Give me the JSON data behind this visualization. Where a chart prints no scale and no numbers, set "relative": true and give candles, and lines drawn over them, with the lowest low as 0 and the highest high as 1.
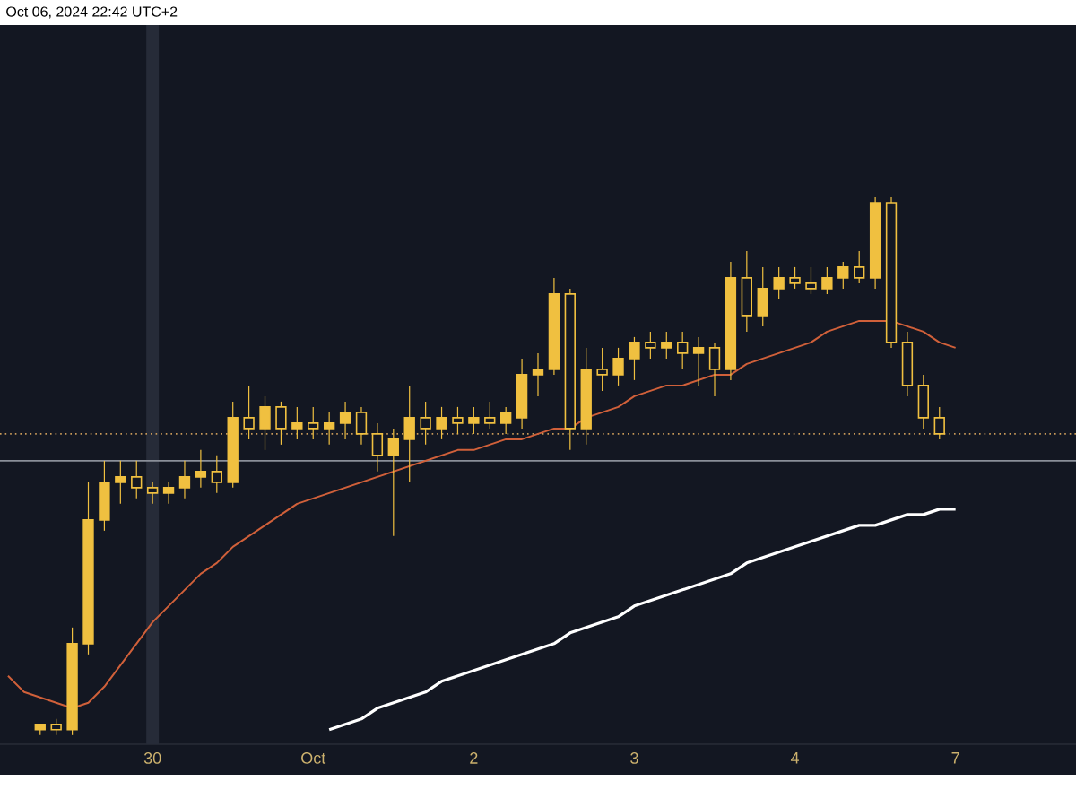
{
  "chart_data": {
    "type": "candlestick",
    "relative": true,
    "tick_labels": "x",
    "categories": [
      null,
      null,
      null,
      null,
      null,
      null,
      null,
      null,
      null,
      "30",
      null,
      null,
      null,
      null,
      null,
      null,
      null,
      null,
      null,
      "Oct",
      null,
      null,
      null,
      null,
      null,
      null,
      null,
      null,
      null,
      "2",
      null,
      null,
      null,
      null,
      null,
      null,
      null,
      null,
      null,
      "3",
      null,
      null,
      null,
      null,
      null,
      null,
      null,
      null,
      null,
      "4",
      null,
      null,
      null,
      null,
      null,
      null,
      null,
      null,
      null,
      "7",
      null,
      null,
      null,
      null,
      null,
      null,
      null
    ],
    "annotations": [
      "Oct 06, 2024 22:42 UTC+2"
    ],
    "ref_lines": [
      {
        "axis": "x",
        "value": "30",
        "color": "#262b38",
        "line_style": "solid"
      },
      {
        "axis": "y",
        "value": 0.51,
        "color": "#8a8f99",
        "line_style": "solid"
      },
      {
        "axis": "y",
        "value": 0.56,
        "color": "#c89a5a",
        "line_style": "dotted"
      }
    ],
    "series": [
      {
        "type": "line",
        "color": "#d0603a",
        "values": [
          0.11,
          0.08,
          0.07,
          0.06,
          0.05,
          0.06,
          0.09,
          0.13,
          0.17,
          0.21,
          0.24,
          0.27,
          0.3,
          0.32,
          0.35,
          0.37,
          0.39,
          0.41,
          0.43,
          0.44,
          0.45,
          0.46,
          0.47,
          0.48,
          0.49,
          0.5,
          0.51,
          0.52,
          0.53,
          0.53,
          0.54,
          0.55,
          0.55,
          0.56,
          0.57,
          0.57,
          0.59,
          0.6,
          0.61,
          0.63,
          0.64,
          0.65,
          0.65,
          0.66,
          0.67,
          0.67,
          0.69,
          0.7,
          0.71,
          0.72,
          0.73,
          0.75,
          0.76,
          0.77,
          0.77,
          0.77,
          0.76,
          0.75,
          0.73,
          0.72,
          null,
          null,
          null,
          null,
          null,
          null,
          null
        ]
      },
      {
        "type": "line",
        "color": "#ffffff",
        "values": [
          null,
          null,
          null,
          null,
          null,
          null,
          null,
          null,
          null,
          null,
          null,
          null,
          null,
          null,
          null,
          null,
          null,
          null,
          null,
          null,
          0.01,
          0.02,
          0.03,
          0.05,
          0.06,
          0.07,
          0.08,
          0.1,
          0.11,
          0.12,
          0.13,
          0.14,
          0.15,
          0.16,
          0.17,
          0.19,
          0.2,
          0.21,
          0.22,
          0.24,
          0.25,
          0.26,
          0.27,
          0.28,
          0.29,
          0.3,
          0.32,
          0.33,
          0.34,
          0.35,
          0.36,
          0.37,
          0.38,
          0.39,
          0.39,
          0.4,
          0.41,
          0.41,
          0.42,
          0.42,
          null,
          null,
          null,
          null,
          null,
          null,
          null
        ]
      },
      {
        "color": "#f0c040",
        "ohlc": [
          null,
          null,
          [
            0.01,
            0.02,
            0,
            0.02
          ],
          [
            0.02,
            0.03,
            0.0,
            0.01
          ],
          [
            0.01,
            0.2,
            0,
            0.17
          ],
          [
            0.17,
            0.47,
            0.15,
            0.4
          ],
          [
            0.4,
            0.51,
            0.38,
            0.47
          ],
          [
            0.47,
            0.51,
            0.43,
            0.48
          ],
          [
            0.48,
            0.51,
            0.44,
            0.46
          ],
          [
            0.46,
            0.47,
            0.43,
            0.45
          ],
          [
            0.45,
            0.47,
            0.43,
            0.46
          ],
          [
            0.46,
            0.51,
            0.44,
            0.48
          ],
          [
            0.48,
            0.53,
            0.46,
            0.49
          ],
          [
            0.49,
            0.52,
            0.45,
            0.47
          ],
          [
            0.47,
            0.62,
            0.46,
            0.59
          ],
          [
            0.59,
            0.65,
            0.55,
            0.57
          ],
          [
            0.57,
            0.63,
            0.53,
            0.61
          ],
          [
            0.61,
            0.62,
            0.54,
            0.57
          ],
          [
            0.57,
            0.61,
            0.55,
            0.58
          ],
          [
            0.58,
            0.61,
            0.55,
            0.57
          ],
          [
            0.57,
            0.6,
            0.54,
            0.58
          ],
          [
            0.58,
            0.62,
            0.55,
            0.6
          ],
          [
            0.6,
            0.61,
            0.54,
            0.56
          ],
          [
            0.56,
            0.58,
            0.49,
            0.52
          ],
          [
            0.52,
            0.57,
            0.37,
            0.55
          ],
          [
            0.55,
            0.65,
            0.47,
            0.59
          ],
          [
            0.59,
            0.62,
            0.54,
            0.57
          ],
          [
            0.57,
            0.61,
            0.55,
            0.59
          ],
          [
            0.59,
            0.61,
            0.56,
            0.58
          ],
          [
            0.58,
            0.61,
            0.56,
            0.59
          ],
          [
            0.59,
            0.62,
            0.57,
            0.58
          ],
          [
            0.58,
            0.61,
            0.56,
            0.6
          ],
          [
            0.59,
            0.7,
            0.57,
            0.67
          ],
          [
            0.67,
            0.71,
            0.63,
            0.68
          ],
          [
            0.68,
            0.85,
            0.67,
            0.82
          ],
          [
            0.82,
            0.83,
            0.53,
            0.57
          ],
          [
            0.57,
            0.72,
            0.54,
            0.68
          ],
          [
            0.68,
            0.72,
            0.64,
            0.67
          ],
          [
            0.67,
            0.72,
            0.65,
            0.7
          ],
          [
            0.7,
            0.74,
            0.66,
            0.73
          ],
          [
            0.73,
            0.75,
            0.7,
            0.72
          ],
          [
            0.72,
            0.75,
            0.7,
            0.73
          ],
          [
            0.73,
            0.75,
            0.68,
            0.71
          ],
          [
            0.71,
            0.74,
            0.65,
            0.72
          ],
          [
            0.72,
            0.73,
            0.63,
            0.68
          ],
          [
            0.68,
            0.88,
            0.66,
            0.85
          ],
          [
            0.85,
            0.9,
            0.75,
            0.78
          ],
          [
            0.78,
            0.87,
            0.76,
            0.83
          ],
          [
            0.83,
            0.87,
            0.81,
            0.85
          ],
          [
            0.85,
            0.87,
            0.83,
            0.84
          ],
          [
            0.84,
            0.87,
            0.82,
            0.83
          ],
          [
            0.83,
            0.87,
            0.82,
            0.85
          ],
          [
            0.85,
            0.88,
            0.83,
            0.87
          ],
          [
            0.87,
            0.9,
            0.84,
            0.85
          ],
          [
            0.85,
            1.0,
            0.83,
            0.99
          ],
          [
            0.99,
            1.0,
            0.72,
            0.73
          ],
          [
            0.73,
            0.75,
            0.63,
            0.65
          ],
          [
            0.65,
            0.67,
            0.57,
            0.59
          ],
          [
            0.59,
            0.61,
            0.55,
            0.56
          ],
          null,
          null,
          null,
          null,
          null,
          null,
          null,
          null
        ]
      }
    ]
  }
}
